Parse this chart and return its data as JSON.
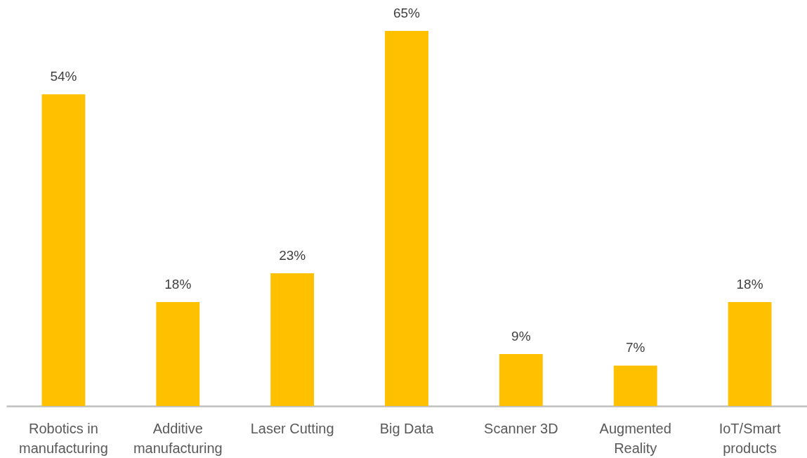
{
  "chart_data": {
    "type": "bar",
    "categories": [
      "Robotics in manufacturing",
      "Additive manufacturing",
      "Laser Cutting",
      "Big Data",
      "Scanner 3D",
      "Augmented Reality",
      "IoT/Smart products"
    ],
    "values": [
      54,
      18,
      23,
      65,
      9,
      7,
      18
    ],
    "value_labels": [
      "54%",
      "18%",
      "23%",
      "65%",
      "9%",
      "7%",
      "18%"
    ],
    "color": "#ffc000",
    "tick_labels": "x"
  }
}
